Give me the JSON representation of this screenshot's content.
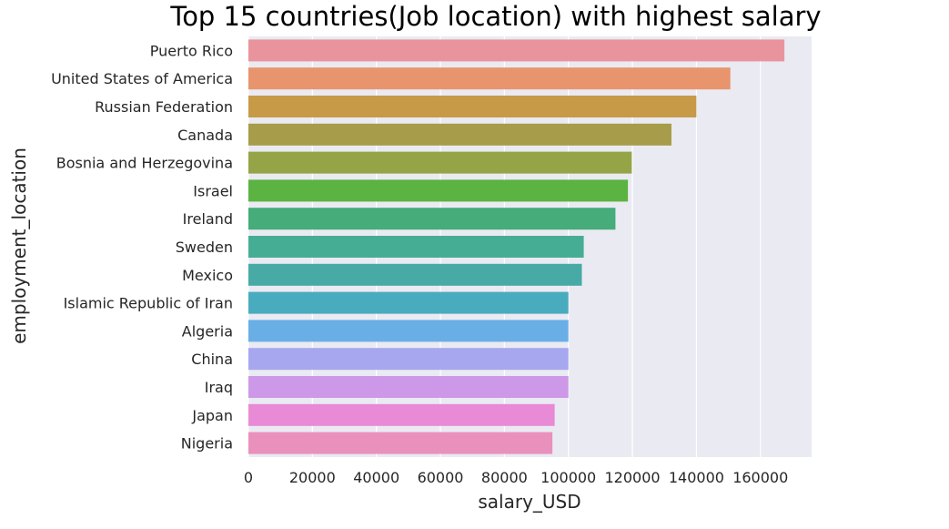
{
  "chart_data": {
    "type": "bar",
    "orientation": "horizontal",
    "title": "Top 15 countries(Job location) with highest salary",
    "xlabel": "salary_USD",
    "ylabel": "employment_location",
    "xlim": [
      0,
      176000
    ],
    "xticks": [
      "0",
      "20000",
      "40000",
      "60000",
      "80000",
      "100000",
      "120000",
      "140000",
      "160000"
    ],
    "grid": true,
    "categories": [
      "Puerto Rico",
      "United States of America",
      "Russian Federation",
      "Canada",
      "Bosnia and Herzegovina",
      "Israel",
      "Ireland",
      "Sweden",
      "Mexico",
      "Islamic Republic of Iran",
      "Algeria",
      "China",
      "Iraq",
      "Japan",
      "Nigeria"
    ],
    "values": [
      167500,
      150600,
      140000,
      132200,
      119800,
      118600,
      114700,
      104800,
      104200,
      100000,
      100000,
      100000,
      100000,
      95700,
      95000
    ],
    "colors": [
      "#e9949d",
      "#e8946c",
      "#c79a48",
      "#a79c49",
      "#96a448",
      "#5bb342",
      "#45ac7a",
      "#46ad95",
      "#47aaa5",
      "#49abbe",
      "#6aaee6",
      "#a7a7ef",
      "#cd98e7",
      "#e88ad6",
      "#ea90bc"
    ],
    "background_color": "#eaeaf2"
  }
}
